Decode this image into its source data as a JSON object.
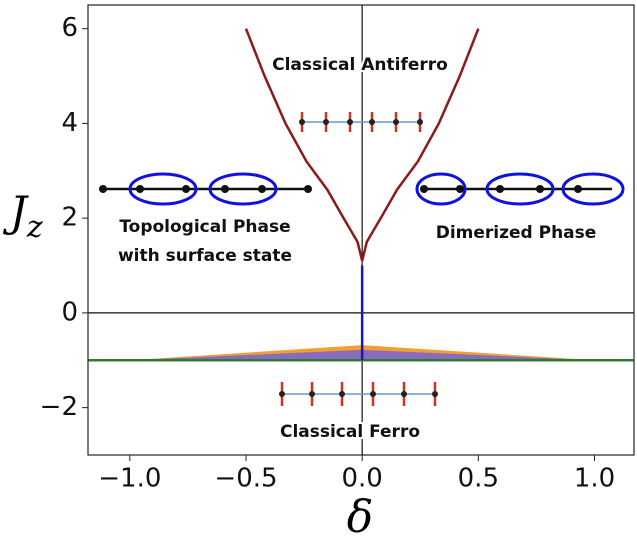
{
  "chart_data": {
    "type": "line",
    "xlabel": "δ",
    "ylabel": {
      "main": "J",
      "sub": "z"
    },
    "xlim": [
      -1.18,
      1.17
    ],
    "ylim": [
      -3,
      6.5
    ],
    "xticks": [
      {
        "value": -1,
        "label": "−1.0"
      },
      {
        "value": -0.5,
        "label": "−0.5"
      },
      {
        "value": 0,
        "label": "0.0"
      },
      {
        "value": 0.5,
        "label": "0.5"
      },
      {
        "value": 1,
        "label": "1.0"
      }
    ],
    "yticks": [
      {
        "value": -2,
        "label": "−2"
      },
      0,
      2,
      4,
      6
    ],
    "zero_lines": true,
    "series": [
      {
        "color": "#f0a030",
        "fill": true,
        "x": [
          -1,
          0,
          1
        ],
        "values": [
          -1,
          -0.68,
          -1
        ]
      },
      {
        "color": "#8a6abf",
        "fill": true,
        "x": [
          -1,
          0,
          1
        ],
        "values": [
          -1,
          -0.78,
          -1
        ]
      },
      {
        "color": "#2e7d32",
        "fill": false,
        "x": [
          -1.18,
          1.17
        ],
        "values": [
          -1,
          -1
        ]
      },
      {
        "color": "#1a1aa0",
        "fill": false,
        "x": [
          0,
          0
        ],
        "values": [
          -1,
          1
        ]
      },
      {
        "color": "#8b1a1a",
        "fill": false,
        "x": [
          -0.5,
          -0.42,
          -0.33,
          -0.24,
          -0.15,
          -0.08,
          -0.02,
          0,
          0.02,
          0.08,
          0.15,
          0.24,
          0.33,
          0.42,
          0.5
        ],
        "values": [
          6,
          5,
          4,
          3.2,
          2.6,
          2,
          1.5,
          1.1,
          1.5,
          2,
          2.6,
          3.2,
          4,
          5,
          6
        ]
      }
    ],
    "annotations": [
      "Classical Antiferro",
      "Topological Phase",
      "with surface state",
      "Dimerized Phase",
      "Classical Ferro"
    ]
  }
}
